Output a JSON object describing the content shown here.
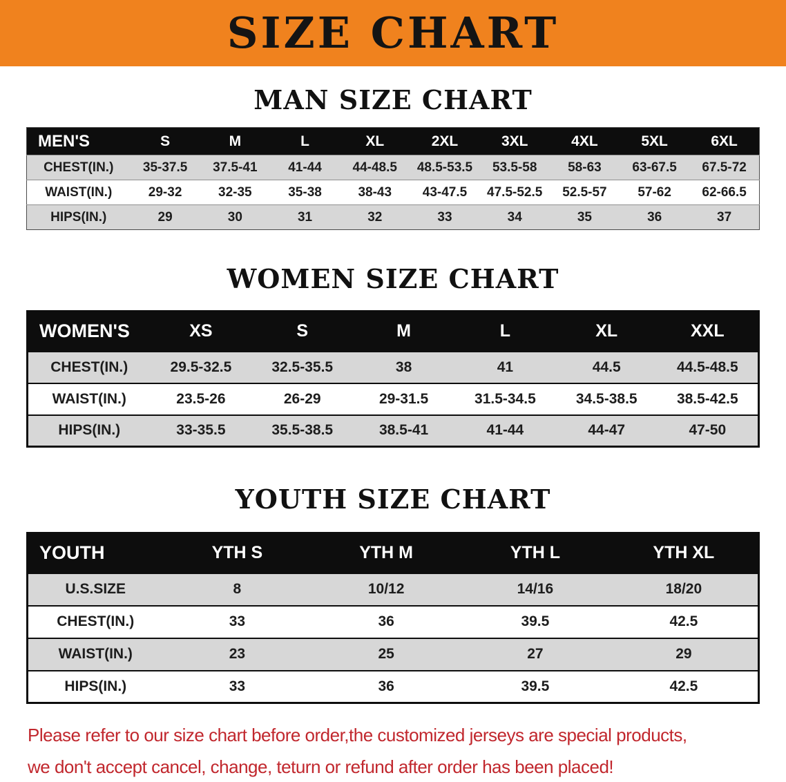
{
  "banner": {
    "title": "SIZE CHART"
  },
  "colors": {
    "banner_bg": "#F0821E",
    "table_header_bg": "#0D0D0D",
    "row_gray": "#D7D7D7",
    "disclaimer_red": "#C1272D"
  },
  "sections": [
    {
      "id": "men",
      "heading": "MAN SIZE CHART",
      "table": {
        "header": [
          "MEN'S",
          "S",
          "M",
          "L",
          "XL",
          "2XL",
          "3XL",
          "4XL",
          "5XL",
          "6XL"
        ],
        "rows": [
          {
            "label": "CHEST(IN.)",
            "values": [
              "35-37.5",
              "37.5-41",
              "41-44",
              "44-48.5",
              "48.5-53.5",
              "53.5-58",
              "58-63",
              "63-67.5",
              "67.5-72"
            ]
          },
          {
            "label": "WAIST(IN.)",
            "values": [
              "29-32",
              "32-35",
              "35-38",
              "38-43",
              "43-47.5",
              "47.5-52.5",
              "52.5-57",
              "57-62",
              "62-66.5"
            ]
          },
          {
            "label": "HIPS(IN.)",
            "values": [
              "29",
              "30",
              "31",
              "32",
              "33",
              "34",
              "35",
              "36",
              "37"
            ]
          }
        ]
      }
    },
    {
      "id": "women",
      "heading": "WOMEN SIZE CHART",
      "table": {
        "header": [
          "WOMEN'S",
          "XS",
          "S",
          "M",
          "L",
          "XL",
          "XXL"
        ],
        "rows": [
          {
            "label": "CHEST(IN.)",
            "values": [
              "29.5-32.5",
              "32.5-35.5",
              "38",
              "41",
              "44.5",
              "44.5-48.5"
            ]
          },
          {
            "label": "WAIST(IN.)",
            "values": [
              "23.5-26",
              "26-29",
              "29-31.5",
              "31.5-34.5",
              "34.5-38.5",
              "38.5-42.5"
            ]
          },
          {
            "label": "HIPS(IN.)",
            "values": [
              "33-35.5",
              "35.5-38.5",
              "38.5-41",
              "41-44",
              "44-47",
              "47-50"
            ]
          }
        ]
      }
    },
    {
      "id": "youth",
      "heading": "YOUTH SIZE CHART",
      "table": {
        "header": [
          "YOUTH",
          "YTH S",
          "YTH M",
          "YTH L",
          "YTH XL"
        ],
        "rows": [
          {
            "label": "U.S.SIZE",
            "values": [
              "8",
              "10/12",
              "14/16",
              "18/20"
            ]
          },
          {
            "label": "CHEST(IN.)",
            "values": [
              "33",
              "36",
              "39.5",
              "42.5"
            ]
          },
          {
            "label": "WAIST(IN.)",
            "values": [
              "23",
              "25",
              "27",
              "29"
            ]
          },
          {
            "label": "HIPS(IN.)",
            "values": [
              "33",
              "36",
              "39.5",
              "42.5"
            ]
          }
        ]
      }
    }
  ],
  "disclaimer": {
    "line1": "Please refer to our size chart before order,the customized jerseys are special products,",
    "line2": "we don't accept cancel, change, teturn or refund after order has been placed!"
  }
}
